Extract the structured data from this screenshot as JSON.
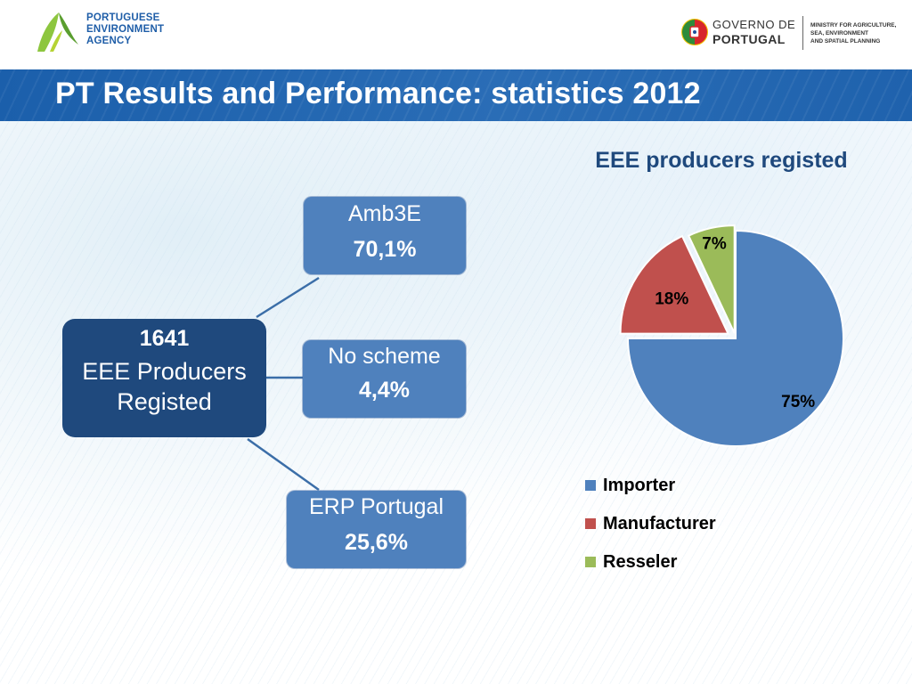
{
  "header": {
    "agency_lines": [
      "PORTUGUESE",
      "ENVIRONMENT",
      "AGENCY"
    ],
    "gov_line1": "GOVERNO DE",
    "gov_line2": "PORTUGAL",
    "ministry_lines": [
      "MINISTRY FOR AGRICULTURE,",
      "SEA, ENVIRONMENT",
      "AND SPATIAL PLANNING"
    ]
  },
  "title": "PT Results and Performance: statistics 2012",
  "diagram": {
    "center": {
      "number": "1641",
      "desc_line1": "EEE Producers",
      "desc_line2": "Registed"
    },
    "nodes": [
      {
        "name": "Amb3E",
        "value": "70,1%"
      },
      {
        "name": "No scheme",
        "value": "4,4%"
      },
      {
        "name": "ERP Portugal",
        "value": "25,6%"
      }
    ]
  },
  "chart_data": {
    "type": "pie",
    "title": "EEE producers registed",
    "legend_position": "bottom-left",
    "slices": [
      {
        "name": "Importer",
        "value": 75,
        "label": "75%",
        "color": "#4f81bd"
      },
      {
        "name": "Manufacturer",
        "value": 18,
        "label": "18%",
        "color": "#c0504d"
      },
      {
        "name": "Resseler",
        "value": 7,
        "label": "7%",
        "color": "#9bbb59"
      }
    ]
  }
}
